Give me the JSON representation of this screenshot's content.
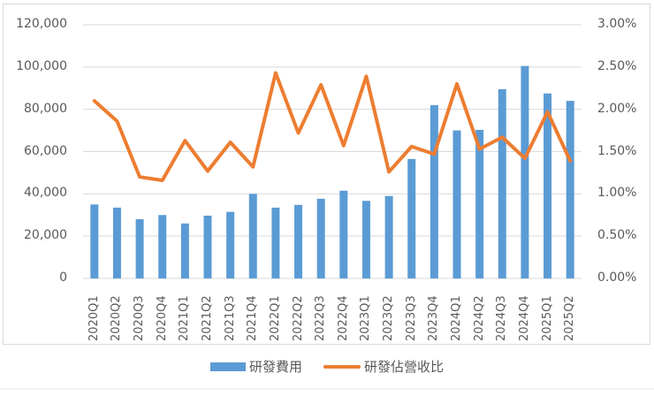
{
  "chart_data": {
    "type": "bar+line",
    "title": "",
    "categories": [
      "2020Q1",
      "2020Q2",
      "2020Q3",
      "2020Q4",
      "2021Q1",
      "2021Q2",
      "2021Q3",
      "2021Q4",
      "2022Q1",
      "2022Q2",
      "2022Q3",
      "2022Q4",
      "2023Q1",
      "2023Q2",
      "2023Q3",
      "2023Q4",
      "2024Q1",
      "2024Q2",
      "2024Q3",
      "2024Q4",
      "2025Q1",
      "2025Q2"
    ],
    "series": [
      {
        "name": "研發費用",
        "type": "bar",
        "axis": "left",
        "color": "#5b9bd5",
        "values": [
          35000,
          33500,
          28000,
          30000,
          26000,
          29700,
          31500,
          40000,
          33500,
          34800,
          37700,
          41500,
          36700,
          39000,
          56500,
          82000,
          70000,
          70300,
          89500,
          100500,
          87500,
          84000
        ]
      },
      {
        "name": "研發佔營收比",
        "type": "line",
        "axis": "right",
        "color": "#ed7d31",
        "values": [
          2.1,
          1.86,
          1.2,
          1.16,
          1.63,
          1.27,
          1.61,
          1.32,
          2.43,
          1.72,
          2.29,
          1.57,
          2.39,
          1.26,
          1.56,
          1.47,
          2.3,
          1.53,
          1.67,
          1.42,
          1.97,
          1.39
        ]
      }
    ],
    "left_axis": {
      "min": 0,
      "max": 120000,
      "ticks": [
        "0",
        "20,000",
        "40,000",
        "60,000",
        "80,000",
        "100,000",
        "120,000"
      ]
    },
    "right_axis": {
      "min": 0,
      "max": 3.0,
      "unit": "%",
      "ticks": [
        "0.00%",
        "0.50%",
        "1.00%",
        "1.50%",
        "2.00%",
        "2.50%",
        "3.00%"
      ]
    },
    "grid": true,
    "legend_position": "bottom",
    "xlabel": "",
    "ylabel": ""
  },
  "legend": {
    "bar_label": "研發費用",
    "line_label": "研發佔營收比"
  }
}
